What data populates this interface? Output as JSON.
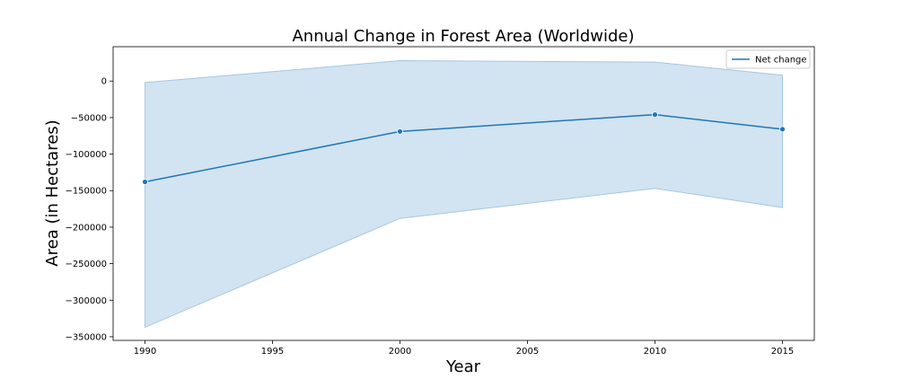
{
  "chart_data": {
    "type": "line",
    "title": "Annual Change in Forest Area (Worldwide)",
    "xlabel": "Year",
    "ylabel": "Area (in Hectares)",
    "x": [
      1990,
      2000,
      2010,
      2015
    ],
    "series": [
      {
        "name": "Net change",
        "values": [
          -138000,
          -69000,
          -46000,
          -66000
        ],
        "ci_upper": [
          -2000,
          28000,
          26000,
          8000
        ],
        "ci_lower": [
          -337000,
          -188000,
          -147000,
          -173000
        ],
        "color": "#1f77b4",
        "band_color": "#a6c8e3"
      }
    ],
    "xlim": [
      1988.75,
      2016.25
    ],
    "ylim": [
      -355000,
      47000
    ],
    "x_ticks": [
      1990,
      1995,
      2000,
      2005,
      2010,
      2015
    ],
    "x_tick_labels": [
      "1990",
      "1995",
      "2000",
      "2005",
      "2010",
      "2015"
    ],
    "y_ticks": [
      0,
      -50000,
      -100000,
      -150000,
      -200000,
      -250000,
      -300000,
      -350000
    ],
    "y_tick_labels": [
      "0",
      "−50000",
      "−100000",
      "−150000",
      "−200000",
      "−250000",
      "−300000",
      "−350000"
    ],
    "grid": false,
    "legend_position": "top-right",
    "legend_label": "Net change"
  }
}
